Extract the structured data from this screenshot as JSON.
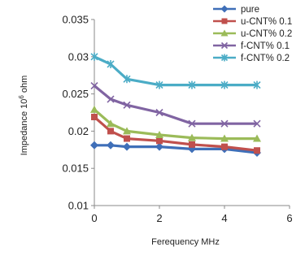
{
  "chart_data": {
    "type": "line",
    "title": "",
    "xlabel": "Ferequency MHz",
    "ylabel_parts": {
      "prefix": "Impedance 10",
      "exponent": "6",
      "suffix": " ohm"
    },
    "xlim": [
      0,
      6
    ],
    "ylim": [
      0.01,
      0.035
    ],
    "x_ticks": [
      "0",
      "2",
      "4",
      "6"
    ],
    "y_ticks": [
      "0.01",
      "0.015",
      "0.02",
      "0.025",
      "0.03",
      "0.035"
    ],
    "grid": false,
    "legend_position": "top-right",
    "x": [
      0,
      0.5,
      1,
      2,
      3,
      4,
      5
    ],
    "series": [
      {
        "name": "pure",
        "color": "#3F6FB8",
        "marker": "diamond",
        "values": [
          0.0181,
          0.0181,
          0.0179,
          0.0179,
          0.0176,
          0.0176,
          0.0171
        ]
      },
      {
        "name": "u-CNT% 0.1",
        "color": "#C0504D",
        "marker": "square",
        "values": [
          0.0219,
          0.02,
          0.019,
          0.0187,
          0.0182,
          0.0179,
          0.0174
        ]
      },
      {
        "name": "u-CNT% 0.2",
        "color": "#9BBB59",
        "marker": "triangle",
        "values": [
          0.0229,
          0.021,
          0.02,
          0.0195,
          0.0191,
          0.019,
          0.019
        ]
      },
      {
        "name": "f-CNT% 0.1",
        "color": "#8064A2",
        "marker": "x",
        "values": [
          0.0261,
          0.0243,
          0.0235,
          0.0225,
          0.021,
          0.021,
          0.021
        ]
      },
      {
        "name": "f-CNT% 0.2",
        "color": "#4BACC6",
        "marker": "star",
        "values": [
          0.03,
          0.029,
          0.027,
          0.0262,
          0.0262,
          0.0262,
          0.0262
        ]
      }
    ]
  }
}
